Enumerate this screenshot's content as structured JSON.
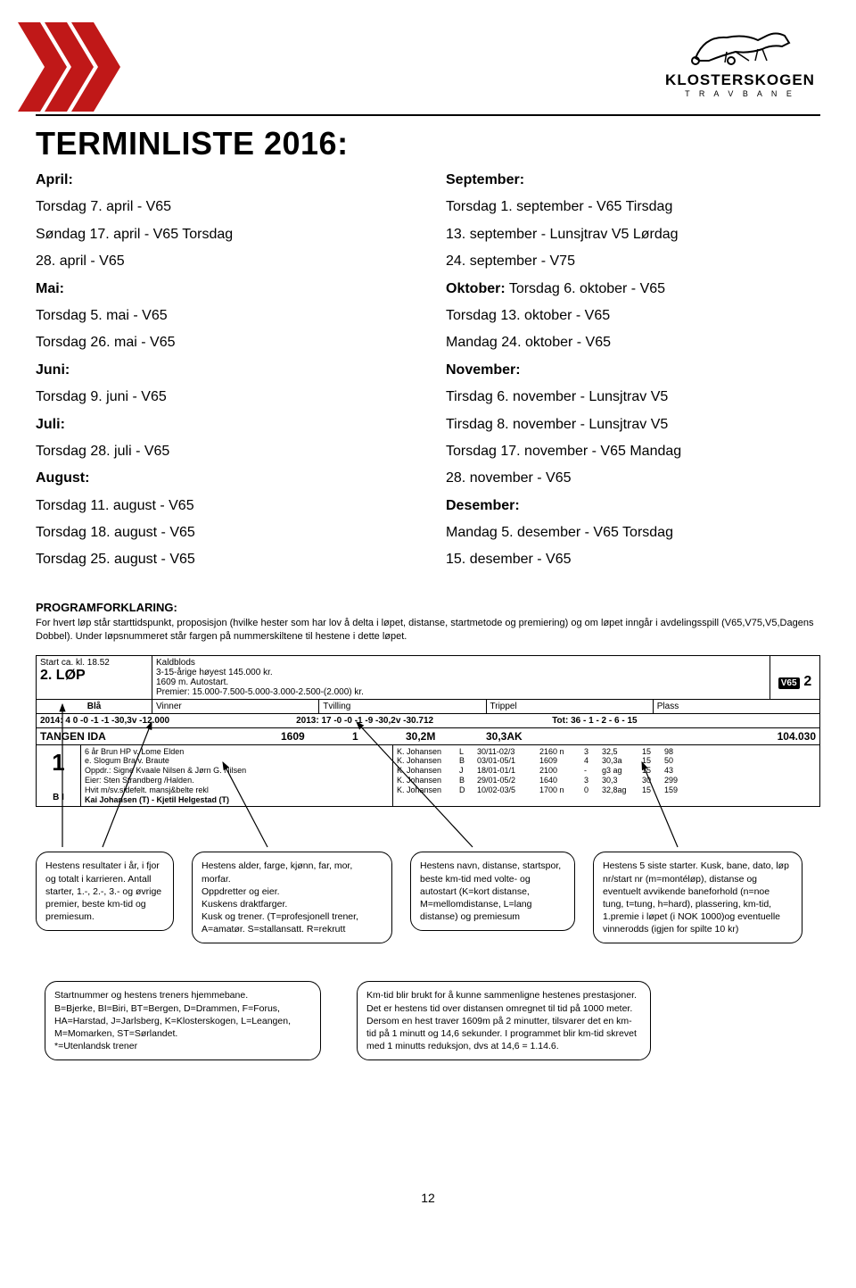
{
  "header": {
    "logo_name": "KLOSTERSKOGEN",
    "logo_sub": "T R A V B A N E",
    "chevron_color": "#c01818"
  },
  "title": "TERMINLISTE 2016:",
  "left_col": [
    {
      "b": true,
      "t": "April:"
    },
    {
      "b": false,
      "t": "Torsdag 7. april - V65"
    },
    {
      "b": false,
      "t": "Søndag 17. april - V65 Torsdag"
    },
    {
      "b": false,
      "t": "28. april - V65"
    },
    {
      "b": true,
      "t": "Mai:"
    },
    {
      "b": false,
      "t": "Torsdag 5. mai - V65"
    },
    {
      "b": false,
      "t": "Torsdag 26. mai - V65"
    },
    {
      "b": true,
      "t": "Juni:"
    },
    {
      "b": false,
      "t": "Torsdag 9. juni - V65"
    },
    {
      "b": true,
      "t": "Juli:"
    },
    {
      "b": false,
      "t": "Torsdag 28. juli - V65"
    },
    {
      "b": true,
      "t": "August:"
    },
    {
      "b": false,
      "t": "Torsdag 11. august - V65"
    },
    {
      "b": false,
      "t": "Torsdag 18. august - V65"
    },
    {
      "b": false,
      "t": "Torsdag 25. august - V65"
    }
  ],
  "right_col": [
    {
      "b": true,
      "t": "September:"
    },
    {
      "b": false,
      "t": "Torsdag 1. september - V65 Tirsdag"
    },
    {
      "b": false,
      "t": "13. september - Lunsjtrav V5 Lørdag"
    },
    {
      "b": false,
      "t": "24. september - V75"
    },
    {
      "b": false,
      "t": "Oktober: Torsdag 6. oktober - V65",
      "mix": "Oktober:"
    },
    {
      "b": false,
      "t": "Torsdag 13. oktober - V65"
    },
    {
      "b": false,
      "t": "Mandag 24. oktober - V65"
    },
    {
      "b": true,
      "t": "November:"
    },
    {
      "b": false,
      "t": "Tirsdag 6. november - Lunsjtrav V5"
    },
    {
      "b": false,
      "t": "Tirsdag 8. november - Lunsjtrav V5"
    },
    {
      "b": false,
      "t": "Torsdag 17. november - V65 Mandag"
    },
    {
      "b": false,
      "t": "28. november - V65"
    },
    {
      "b": true,
      "t": "Desember:"
    },
    {
      "b": false,
      "t": "Mandag 5. desember - V65 Torsdag"
    },
    {
      "b": false,
      "t": "15. desember - V65"
    }
  ],
  "prog": {
    "title": "PROGRAMFORKLARING:",
    "expl": "For hvert løp står starttidspunkt, proposisjon (hvilke hester som har lov å delta i løpet, distanse, startmetode og premiering) og om løpet inngår i avdelingsspill (V65,V75,V5,Dagens Dobbel). Under løpsnummeret står fargen på nummerskiltene til hestene i dette løpet."
  },
  "race": {
    "start_ca": "Start ca. kl. 18.52",
    "lop": "2. LØP",
    "kald_lines": [
      "Kaldblods",
      "3-15-årige høyest 145.000 kr.",
      "1609 m. Autostart.",
      "Premier: 15.000-7.500-5.000-3.000-2.500-(2.000) kr."
    ],
    "v65_badge": "V65",
    "v65_num": "2",
    "bla": "Blå",
    "bets": [
      "Vinner",
      "Tvilling",
      "Trippel",
      "Plass"
    ],
    "stats_left": "2014: 4 0 -0 -1 -1 -30,3v -12.000",
    "stats_mid": "2013: 17 -0 -0 -1 -9 -30,2v -30.712",
    "stats_right": "Tot: 36 - 1 - 2 - 6 - 15",
    "horse_name": "TANGEN IDA",
    "dist": "1609",
    "spor": "1",
    "volte": "30,2M",
    "auto": "30,3AK",
    "premie": "104.030",
    "num": "1",
    "bi": "B I",
    "details": [
      "6 år Brun HP v. Lome Elden",
      "e. Slogum Bra v. Braute",
      "Oppdr.: Signe Kvaale Nilsen & Jørn G. Nilsen",
      "Eier: Sten Strandberg /Halden.",
      "Hvit m/sv.sidefelt. mansj&belte rekl",
      "Kai Johansen (T) - Kjetil Helgestad (T)"
    ],
    "results": [
      [
        "K. Johansen",
        "L",
        "30/11-02/3",
        "2160 n",
        "3",
        "32,5",
        "15",
        "98"
      ],
      [
        "K. Johansen",
        "B",
        "03/01-05/1",
        "1609",
        "4",
        "30,3a",
        "15",
        "50"
      ],
      [
        "K. Johansen",
        "J",
        "18/01-01/1",
        "2100",
        "-",
        "g3 ag",
        "15",
        "43"
      ],
      [
        "K. Johansen",
        "B",
        "29/01-05/2",
        "1640",
        "3",
        "30,3",
        "30",
        "299"
      ],
      [
        "K. Johansen",
        "D",
        "10/02-03/5",
        "1700 n",
        "0",
        "32,8ag",
        "15",
        "159"
      ]
    ]
  },
  "bubbles": {
    "b1": "Hestens resultater i år, i fjor og totalt i karrieren. Antall starter, 1.-, 2.-, 3.- og øvrige premier, beste km-tid og premiesum.",
    "b2": "Hestens alder, farge, kjønn, far, mor, morfar.\nOppdretter og eier.\nKuskens draktfarger.\nKusk og trener. (T=profesjonell trener, A=amatør. S=stallansatt. R=rekrutt",
    "b3": "Hestens navn, distanse, startspor, beste km-tid med volte- og autostart (K=kort distanse, M=mellomdistanse, L=lang distanse) og premiesum",
    "b4": "Hestens 5 siste starter. Kusk, bane, dato, løp nr/start nr (m=montéløp), distanse og eventuelt avvikende baneforhold (n=noe tung, t=tung, h=hard), plassering, km-tid, 1.premie i løpet (i NOK 1000)og eventuelle vinnerodds (igjen for spilte 10 kr)",
    "b5": "Startnummer og hestens treners hjemmebane.\nB=Bjerke, BI=Biri, BT=Bergen, D=Drammen, F=Forus,\nHA=Harstad, J=Jarlsberg, K=Klosterskogen, L=Leangen, M=Momarken, ST=Sørlandet.\n*=Utenlandsk trener",
    "b6": "Km-tid blir brukt for å kunne sammenligne hestenes prestasjoner. Det er hestens tid over distansen omregnet til tid på 1000 meter. Dersom en hest traver 1609m på 2 minutter, tilsvarer det en km-tid på 1 minutt og 14,6 sekunder. I programmet blir km-tid skrevet med 1 minutts reduksjon, dvs at 14,6 = 1.14.6."
  },
  "page_num": "12"
}
